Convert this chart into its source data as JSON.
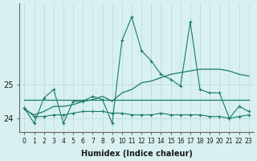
{
  "xlabel": "Humidex (Indice chaleur)",
  "x": [
    0,
    1,
    2,
    3,
    4,
    5,
    6,
    7,
    8,
    9,
    10,
    11,
    12,
    13,
    14,
    15,
    16,
    17,
    18,
    19,
    20,
    21,
    22,
    23
  ],
  "line_jagged": [
    24.3,
    23.85,
    24.6,
    24.85,
    23.85,
    24.5,
    24.5,
    24.65,
    24.55,
    23.85,
    26.3,
    27.0,
    26.0,
    25.7,
    25.3,
    25.15,
    24.95,
    26.85,
    24.85,
    24.75,
    24.75,
    24.0,
    24.35,
    24.2
  ],
  "line_rising": [
    24.25,
    24.1,
    24.2,
    24.35,
    24.35,
    24.4,
    24.5,
    24.55,
    24.65,
    24.5,
    24.75,
    24.85,
    25.05,
    25.1,
    25.2,
    25.3,
    25.35,
    25.4,
    25.45,
    25.45,
    25.45,
    25.4,
    25.3,
    25.25
  ],
  "line_flat_high": [
    24.55,
    24.55,
    24.55,
    24.55,
    24.55,
    24.55,
    24.55,
    24.55,
    24.55,
    24.55,
    24.55,
    24.55,
    24.55,
    24.55,
    24.55,
    24.55,
    24.55,
    24.55,
    24.55,
    24.55,
    24.55,
    24.55,
    24.55,
    24.55
  ],
  "line_flat_low": [
    24.3,
    24.05,
    24.05,
    24.1,
    24.1,
    24.15,
    24.2,
    24.2,
    24.2,
    24.15,
    24.15,
    24.1,
    24.1,
    24.1,
    24.15,
    24.1,
    24.1,
    24.1,
    24.1,
    24.05,
    24.05,
    24.0,
    24.05,
    24.1
  ],
  "ylim": [
    23.6,
    27.4
  ],
  "yticks": [
    24,
    25
  ],
  "color": "#1a7a6e",
  "bg_color": "#d8f0f0",
  "grid_color": "#b8dada",
  "figsize": [
    3.2,
    2.0
  ],
  "dpi": 100
}
